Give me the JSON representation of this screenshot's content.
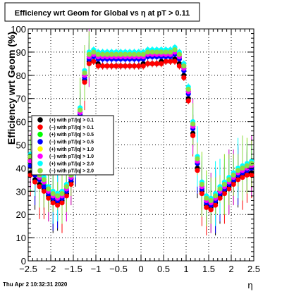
{
  "title": "Efficiency wrt Geom for Global vs  η at pT > 0.11",
  "footer_date": "Thu Apr  2 10:32:31 2020",
  "chart_data": {
    "type": "scatter",
    "title": "Efficiency wrt Geom for Global vs  η at pT > 0.11",
    "xlabel": "η",
    "ylabel": "Efficiency wrt Geom (%)",
    "xlim": [
      -2.5,
      2.5
    ],
    "ylim": [
      0,
      100
    ],
    "x_ticks": [
      -2.5,
      -2,
      -1.5,
      -1,
      -0.5,
      0,
      0.5,
      1,
      1.5,
      2,
      2.5
    ],
    "x_tick_labels": [
      "−2.5",
      "−2",
      "−1.5",
      "−1",
      "−0.5",
      "0",
      "0.5",
      "1",
      "1.5",
      "2",
      "2.5"
    ],
    "y_ticks": [
      0,
      10,
      20,
      30,
      40,
      50,
      60,
      70,
      80,
      90,
      100
    ],
    "y_tick_labels": [
      "0",
      "10",
      "20",
      "30",
      "40",
      "50",
      "60",
      "70",
      "80",
      "90",
      "100"
    ],
    "grid": true,
    "legend_position": "left",
    "x": [
      -2.45,
      -2.35,
      -2.25,
      -2.15,
      -2.05,
      -1.95,
      -1.85,
      -1.75,
      -1.65,
      -1.55,
      -1.45,
      -1.35,
      -1.25,
      -1.15,
      -1.05,
      -0.95,
      -0.85,
      -0.75,
      -0.65,
      -0.55,
      -0.45,
      -0.35,
      -0.25,
      -0.15,
      -0.05,
      0.05,
      0.15,
      0.25,
      0.35,
      0.45,
      0.55,
      0.65,
      0.75,
      0.85,
      0.95,
      1.05,
      1.15,
      1.25,
      1.35,
      1.45,
      1.55,
      1.65,
      1.75,
      1.85,
      1.95,
      2.05,
      2.15,
      2.25,
      2.35,
      2.45
    ],
    "series": [
      {
        "name": "(+) with pT/|q| > 0.1",
        "color": "#000000",
        "values": [
          38,
          35,
          33,
          31,
          28,
          26,
          25,
          26,
          29,
          34,
          45,
          62,
          78,
          86,
          86,
          85,
          84,
          84,
          84,
          84,
          84,
          84,
          84,
          84,
          84,
          85,
          85,
          85,
          85,
          86,
          86,
          86,
          87,
          85,
          80,
          70,
          55,
          40,
          30,
          24,
          23,
          25,
          28,
          30,
          32,
          34,
          36,
          37,
          38,
          38
        ]
      },
      {
        "name": "(−) with pT/|q| > 0.1",
        "color": "#ff0000",
        "values": [
          37,
          34,
          32,
          30,
          27,
          25,
          24,
          25,
          28,
          33,
          44,
          61,
          77,
          85,
          86,
          84,
          84,
          84,
          84,
          84,
          84,
          84,
          84,
          84,
          84,
          84,
          85,
          85,
          85,
          85,
          86,
          86,
          86,
          84,
          79,
          69,
          54,
          39,
          29,
          23,
          22,
          24,
          27,
          29,
          31,
          33,
          35,
          36,
          37,
          37
        ]
      },
      {
        "name": "(+) with pT/|q| > 0.5",
        "color": "#00ff00",
        "values": [
          42,
          38,
          36,
          33,
          30,
          28,
          27,
          28,
          31,
          36,
          47,
          64,
          80,
          88,
          89,
          88,
          88,
          88,
          88,
          88,
          88,
          88,
          88,
          88,
          88,
          88,
          89,
          89,
          89,
          89,
          89,
          89,
          90,
          88,
          83,
          73,
          58,
          43,
          32,
          26,
          25,
          27,
          30,
          32,
          34,
          36,
          38,
          39,
          40,
          41
        ]
      },
      {
        "name": "(−) with pT/|q| > 0.5",
        "color": "#0000ff",
        "values": [
          41,
          37,
          35,
          32,
          29,
          27,
          26,
          27,
          30,
          35,
          46,
          63,
          79,
          87,
          88,
          87,
          87,
          87,
          87,
          87,
          87,
          87,
          87,
          87,
          87,
          87,
          88,
          88,
          88,
          88,
          88,
          88,
          89,
          87,
          82,
          72,
          57,
          42,
          31,
          25,
          24,
          26,
          29,
          31,
          33,
          35,
          37,
          38,
          39,
          40
        ]
      },
      {
        "name": "(+) with pT/|q| > 1.0",
        "color": "#ffff00",
        "values": [
          44,
          40,
          37,
          35,
          31,
          29,
          28,
          29,
          32,
          37,
          48,
          65,
          81,
          89,
          90,
          89,
          89,
          89,
          89,
          89,
          89,
          89,
          89,
          89,
          89,
          89,
          90,
          90,
          90,
          90,
          90,
          90,
          91,
          89,
          84,
          74,
          59,
          44,
          33,
          27,
          26,
          28,
          31,
          33,
          35,
          37,
          39,
          40,
          41,
          42
        ]
      },
      {
        "name": "(−) with pT/|q| > 1.0",
        "color": "#ff00ff",
        "values": [
          43,
          39,
          36,
          34,
          30,
          28,
          27,
          28,
          31,
          36,
          47,
          64,
          80,
          88,
          89,
          88,
          88,
          88,
          88,
          88,
          88,
          88,
          88,
          88,
          88,
          88,
          89,
          89,
          89,
          89,
          89,
          89,
          90,
          88,
          83,
          73,
          58,
          43,
          32,
          26,
          25,
          27,
          30,
          32,
          34,
          36,
          38,
          39,
          40,
          41
        ]
      },
      {
        "name": "(+) with pT/|q| > 2.0",
        "color": "#00ffff",
        "values": [
          46,
          41,
          38,
          36,
          32,
          30,
          29,
          30,
          33,
          38,
          49,
          66,
          82,
          90,
          91,
          90,
          90,
          90,
          90,
          90,
          90,
          90,
          90,
          90,
          90,
          90,
          91,
          91,
          91,
          91,
          91,
          91,
          92,
          90,
          85,
          75,
          60,
          45,
          34,
          28,
          27,
          29,
          32,
          34,
          36,
          38,
          40,
          41,
          42,
          43
        ]
      },
      {
        "name": "(−) with pT/|q| > 2.0",
        "color": "#88dd44",
        "values": [
          45,
          40,
          37,
          35,
          31,
          29,
          28,
          29,
          32,
          37,
          48,
          65,
          81,
          89,
          90,
          89,
          89,
          89,
          89,
          89,
          89,
          89,
          89,
          89,
          89,
          89,
          90,
          90,
          90,
          90,
          90,
          90,
          91,
          89,
          84,
          74,
          59,
          44,
          33,
          27,
          26,
          28,
          31,
          33,
          35,
          37,
          39,
          40,
          41,
          42
        ]
      }
    ]
  }
}
